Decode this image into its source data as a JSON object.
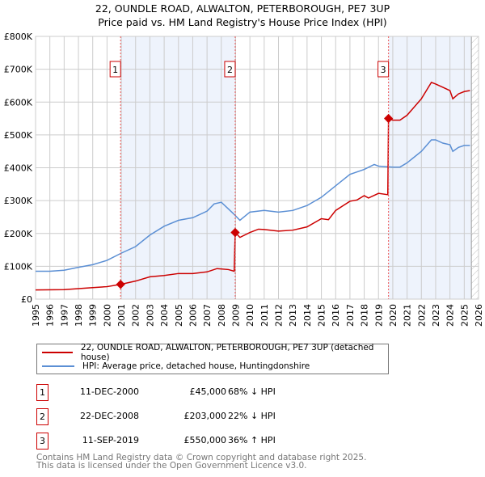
{
  "chart_data": {
    "type": "line",
    "title": "22, OUNDLE ROAD, ALWALTON, PETERBOROUGH, PE7 3UP",
    "subtitle": "Price paid vs. HM Land Registry's House Price Index (HPI)",
    "xlim": [
      1995,
      2026
    ],
    "ylim": [
      0,
      800000
    ],
    "x_ticks": [
      "1995",
      "1996",
      "1997",
      "1998",
      "1999",
      "2000",
      "2001",
      "2002",
      "2003",
      "2004",
      "2005",
      "2006",
      "2007",
      "2008",
      "2009",
      "2010",
      "2011",
      "2012",
      "2013",
      "2014",
      "2015",
      "2016",
      "2017",
      "2018",
      "2019",
      "2020",
      "2021",
      "2022",
      "2023",
      "2024",
      "2025",
      "2026"
    ],
    "y_ticks": [
      {
        "v": 0,
        "label": "£0"
      },
      {
        "v": 100000,
        "label": "£100K"
      },
      {
        "v": 200000,
        "label": "£200K"
      },
      {
        "v": 300000,
        "label": "£300K"
      },
      {
        "v": 400000,
        "label": "£400K"
      },
      {
        "v": 500000,
        "label": "£500K"
      },
      {
        "v": 600000,
        "label": "£600K"
      },
      {
        "v": 700000,
        "label": "£700K"
      },
      {
        "v": 800000,
        "label": "£800K"
      }
    ],
    "grid": true,
    "shaded_ranges": [
      [
        2000.95,
        2008.97
      ],
      [
        2019.7,
        2025.5
      ]
    ],
    "forecast_hatch_from": 2025.5,
    "series": [
      {
        "name": "22, OUNDLE ROAD, ALWALTON, PETERBOROUGH, PE7 3UP (detached house)",
        "color": "#cc0000",
        "points": [
          [
            1995,
            28000
          ],
          [
            1997,
            29000
          ],
          [
            1998,
            32000
          ],
          [
            1999,
            35000
          ],
          [
            2000,
            38000
          ],
          [
            2000.95,
            45000
          ],
          [
            2002,
            55000
          ],
          [
            2003,
            68000
          ],
          [
            2004,
            72000
          ],
          [
            2005,
            78000
          ],
          [
            2006,
            78000
          ],
          [
            2007,
            83000
          ],
          [
            2007.7,
            93000
          ],
          [
            2008.5,
            90000
          ],
          [
            2008.9,
            85000
          ],
          [
            2008.97,
            203000
          ],
          [
            2009.3,
            188000
          ],
          [
            2010,
            203000
          ],
          [
            2010.6,
            213000
          ],
          [
            2011,
            212000
          ],
          [
            2012,
            207000
          ],
          [
            2013,
            210000
          ],
          [
            2014,
            220000
          ],
          [
            2015,
            245000
          ],
          [
            2015.5,
            242000
          ],
          [
            2016,
            270000
          ],
          [
            2017,
            298000
          ],
          [
            2017.5,
            302000
          ],
          [
            2018,
            315000
          ],
          [
            2018.3,
            308000
          ],
          [
            2019,
            322000
          ],
          [
            2019.65,
            318000
          ],
          [
            2019.7,
            550000
          ],
          [
            2020,
            545000
          ],
          [
            2020.5,
            545000
          ],
          [
            2021,
            560000
          ],
          [
            2022,
            610000
          ],
          [
            2022.7,
            660000
          ],
          [
            2023,
            655000
          ],
          [
            2023.5,
            645000
          ],
          [
            2024,
            635000
          ],
          [
            2024.2,
            610000
          ],
          [
            2024.6,
            625000
          ],
          [
            2025,
            632000
          ],
          [
            2025.4,
            635000
          ]
        ]
      },
      {
        "name": "HPI: Average price, detached house, Huntingdonshire",
        "color": "#5b8fd4",
        "points": [
          [
            1995,
            85000
          ],
          [
            1996,
            85000
          ],
          [
            1997,
            88000
          ],
          [
            1998,
            97000
          ],
          [
            1999,
            105000
          ],
          [
            2000,
            118000
          ],
          [
            2001,
            140000
          ],
          [
            2002,
            160000
          ],
          [
            2003,
            195000
          ],
          [
            2004,
            222000
          ],
          [
            2005,
            240000
          ],
          [
            2006,
            248000
          ],
          [
            2007,
            268000
          ],
          [
            2007.5,
            290000
          ],
          [
            2008,
            295000
          ],
          [
            2008.9,
            258000
          ],
          [
            2009.3,
            240000
          ],
          [
            2010,
            265000
          ],
          [
            2011,
            270000
          ],
          [
            2012,
            265000
          ],
          [
            2013,
            270000
          ],
          [
            2014,
            285000
          ],
          [
            2015,
            310000
          ],
          [
            2016,
            345000
          ],
          [
            2017,
            380000
          ],
          [
            2018,
            395000
          ],
          [
            2018.7,
            410000
          ],
          [
            2019,
            405000
          ],
          [
            2020,
            402000
          ],
          [
            2020.5,
            402000
          ],
          [
            2021,
            415000
          ],
          [
            2022,
            450000
          ],
          [
            2022.7,
            485000
          ],
          [
            2023,
            485000
          ],
          [
            2023.5,
            475000
          ],
          [
            2024,
            470000
          ],
          [
            2024.2,
            450000
          ],
          [
            2024.6,
            462000
          ],
          [
            2025,
            468000
          ],
          [
            2025.4,
            468000
          ]
        ]
      }
    ],
    "sales": [
      {
        "label": "1",
        "x": 2000.95,
        "y": 45000,
        "date": "11-DEC-2000",
        "price": "£45,000",
        "hpi": "68% ↓ HPI"
      },
      {
        "label": "2",
        "x": 2008.97,
        "y": 203000,
        "date": "22-DEC-2008",
        "price": "£203,000",
        "hpi": "22% ↓ HPI"
      },
      {
        "label": "3",
        "x": 2019.7,
        "y": 550000,
        "date": "11-SEP-2019",
        "price": "£550,000",
        "hpi": "36% ↑ HPI"
      }
    ]
  },
  "legend": {
    "red": "22, OUNDLE ROAD, ALWALTON, PETERBOROUGH, PE7 3UP (detached house)",
    "blue": "HPI: Average price, detached house, Huntingdonshire"
  },
  "footer": {
    "line1": "Contains HM Land Registry data © Crown copyright and database right 2025.",
    "line2": "This data is licensed under the Open Government Licence v3.0."
  }
}
